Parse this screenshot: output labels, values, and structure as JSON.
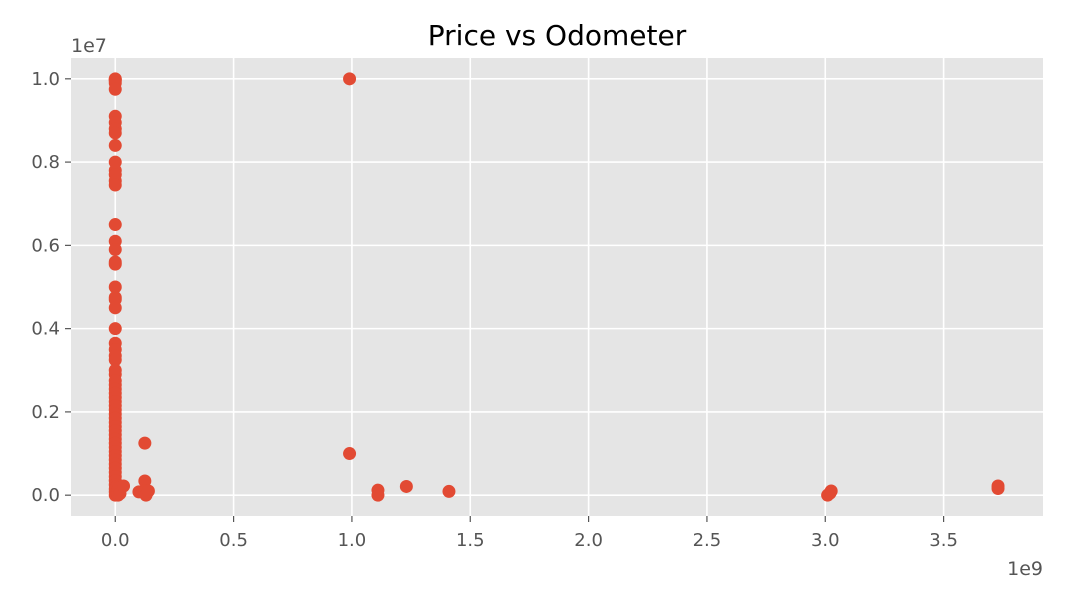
{
  "chart_data": {
    "type": "scatter",
    "title": "Price vs Odometer",
    "xlabel": "",
    "ylabel": "",
    "x_offset_label": "1e9",
    "y_offset_label": "1e7",
    "xlim": [
      -0.187,
      3.92
    ],
    "ylim": [
      -0.05,
      1.05
    ],
    "x_ticks": [
      0.0,
      0.5,
      1.0,
      1.5,
      2.0,
      2.5,
      3.0,
      3.5
    ],
    "x_tick_labels": [
      "0.0",
      "0.5",
      "1.0",
      "1.5",
      "2.0",
      "2.5",
      "3.0",
      "3.5"
    ],
    "y_ticks": [
      0.0,
      0.2,
      0.4,
      0.6,
      0.8,
      1.0
    ],
    "y_tick_labels": [
      "0.0",
      "0.2",
      "0.4",
      "0.6",
      "0.8",
      "1.0"
    ],
    "grid": true,
    "style": "ggplot",
    "colors": {
      "background": "#e5e5e5",
      "grid": "#ffffff",
      "marker": "#e24a33",
      "text": "#555555",
      "title": "#000000"
    },
    "points": [
      {
        "x": 0.0,
        "y": 1.0
      },
      {
        "x": 0.0,
        "y": 0.998
      },
      {
        "x": 0.0,
        "y": 0.995
      },
      {
        "x": 0.0,
        "y": 0.99
      },
      {
        "x": 0.0,
        "y": 0.975
      },
      {
        "x": 0.0,
        "y": 0.91
      },
      {
        "x": 0.0,
        "y": 0.895
      },
      {
        "x": 0.0,
        "y": 0.88
      },
      {
        "x": 0.0,
        "y": 0.87
      },
      {
        "x": 0.0,
        "y": 0.84
      },
      {
        "x": 0.0,
        "y": 0.8
      },
      {
        "x": 0.0,
        "y": 0.78
      },
      {
        "x": 0.0,
        "y": 0.77
      },
      {
        "x": 0.0,
        "y": 0.755
      },
      {
        "x": 0.0,
        "y": 0.745
      },
      {
        "x": 0.0,
        "y": 0.65
      },
      {
        "x": 0.0,
        "y": 0.61
      },
      {
        "x": 0.0,
        "y": 0.59
      },
      {
        "x": 0.0,
        "y": 0.56
      },
      {
        "x": 0.0,
        "y": 0.555
      },
      {
        "x": 0.0,
        "y": 0.5
      },
      {
        "x": 0.0,
        "y": 0.475
      },
      {
        "x": 0.0,
        "y": 0.47
      },
      {
        "x": 0.0,
        "y": 0.45
      },
      {
        "x": 0.0,
        "y": 0.4
      },
      {
        "x": 0.0,
        "y": 0.365
      },
      {
        "x": 0.0,
        "y": 0.35
      },
      {
        "x": 0.0,
        "y": 0.335
      },
      {
        "x": 0.0,
        "y": 0.325
      },
      {
        "x": 0.0,
        "y": 0.3
      },
      {
        "x": 0.0,
        "y": 0.29
      },
      {
        "x": 0.0,
        "y": 0.275
      },
      {
        "x": 0.0,
        "y": 0.265
      },
      {
        "x": 0.0,
        "y": 0.255
      },
      {
        "x": 0.0,
        "y": 0.245
      },
      {
        "x": 0.0,
        "y": 0.235
      },
      {
        "x": 0.0,
        "y": 0.225
      },
      {
        "x": 0.0,
        "y": 0.215
      },
      {
        "x": 0.0,
        "y": 0.205
      },
      {
        "x": 0.0,
        "y": 0.195
      },
      {
        "x": 0.0,
        "y": 0.185
      },
      {
        "x": 0.0,
        "y": 0.175
      },
      {
        "x": 0.0,
        "y": 0.165
      },
      {
        "x": 0.0,
        "y": 0.155
      },
      {
        "x": 0.0,
        "y": 0.145
      },
      {
        "x": 0.0,
        "y": 0.135
      },
      {
        "x": 0.0,
        "y": 0.125
      },
      {
        "x": 0.0,
        "y": 0.115
      },
      {
        "x": 0.0,
        "y": 0.105
      },
      {
        "x": 0.0,
        "y": 0.095
      },
      {
        "x": 0.0,
        "y": 0.085
      },
      {
        "x": 0.0,
        "y": 0.075
      },
      {
        "x": 0.0,
        "y": 0.065
      },
      {
        "x": 0.0,
        "y": 0.055
      },
      {
        "x": 0.0,
        "y": 0.045
      },
      {
        "x": 0.0,
        "y": 0.035
      },
      {
        "x": 0.0,
        "y": 0.025
      },
      {
        "x": 0.0,
        "y": 0.015
      },
      {
        "x": 0.0,
        "y": 0.008
      },
      {
        "x": 0.0,
        "y": 0.0
      },
      {
        "x": 0.005,
        "y": 0.02
      },
      {
        "x": 0.008,
        "y": 0.005
      },
      {
        "x": 0.01,
        "y": 0.012
      },
      {
        "x": 0.012,
        "y": 0.0
      },
      {
        "x": 0.015,
        "y": 0.018
      },
      {
        "x": 0.02,
        "y": 0.004
      },
      {
        "x": 0.035,
        "y": 0.022
      },
      {
        "x": 0.1,
        "y": 0.008
      },
      {
        "x": 0.125,
        "y": 0.125
      },
      {
        "x": 0.125,
        "y": 0.034
      },
      {
        "x": 0.125,
        "y": 0.01
      },
      {
        "x": 0.13,
        "y": 0.0
      },
      {
        "x": 0.14,
        "y": 0.01
      },
      {
        "x": 0.99,
        "y": 1.0
      },
      {
        "x": 0.99,
        "y": 0.1
      },
      {
        "x": 1.11,
        "y": 0.012
      },
      {
        "x": 1.11,
        "y": 0.0
      },
      {
        "x": 1.23,
        "y": 0.021
      },
      {
        "x": 1.41,
        "y": 0.009
      },
      {
        "x": 3.01,
        "y": 0.0
      },
      {
        "x": 3.02,
        "y": 0.005
      },
      {
        "x": 3.025,
        "y": 0.01
      },
      {
        "x": 3.73,
        "y": 0.022
      },
      {
        "x": 3.73,
        "y": 0.016
      }
    ]
  }
}
